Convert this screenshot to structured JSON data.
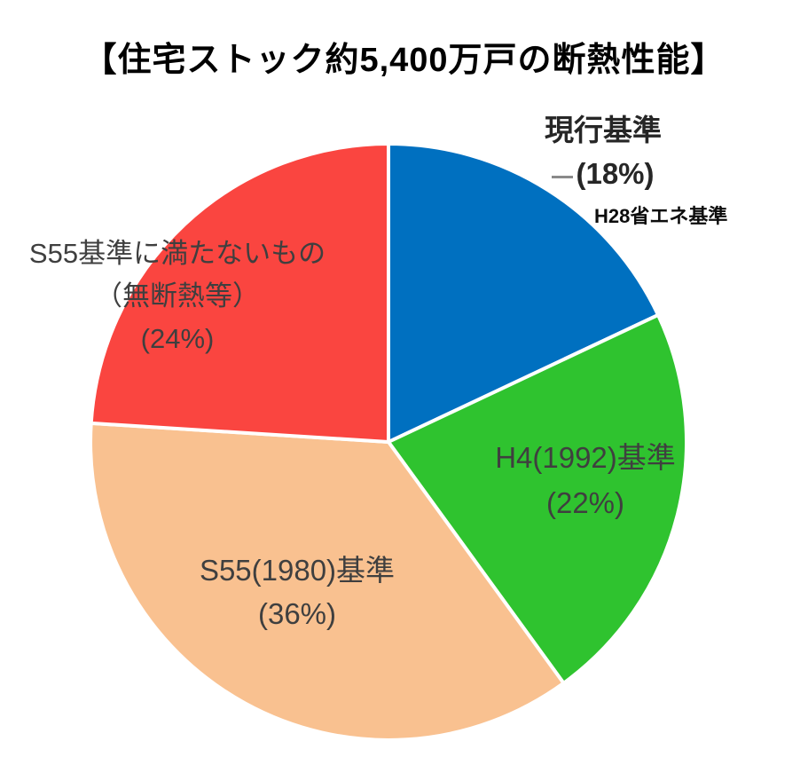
{
  "page": {
    "background": "#ffffff",
    "text_color": "#3f3f3f",
    "title_color": "#000000"
  },
  "title": "【住宅ストック約5,400万戸の断熱性能】",
  "chart_data": {
    "type": "pie",
    "title": "【住宅ストック約5,400万戸の断熱性能】",
    "start_angle_deg": 0,
    "direction": "clockwise",
    "total_percent": 100,
    "slices": [
      {
        "label": "現行基準",
        "annotation": "H28省エネ基準",
        "percent": 18,
        "color": "#0070C0"
      },
      {
        "label": "H4(1992)基準",
        "percent": 22,
        "color": "#2FC32F"
      },
      {
        "label": "S55(1980)基準",
        "percent": 36,
        "color": "#F9C190"
      },
      {
        "label": "S55基準に満たないもの（無断熱等）",
        "percent": 24,
        "color": "#FA4540"
      }
    ],
    "gap_stroke": {
      "color": "#ffffff",
      "width": 4
    },
    "legend": "none",
    "labels_on_chart": true
  },
  "labels": {
    "blue_line1": "現行基準",
    "blue_line2": "(18%)",
    "blue_annotation": "H28省エネ基準",
    "green_line1": "H4(1992)基準",
    "green_line2": "(22%)",
    "tan_line1": "S55(1980)基準",
    "tan_line2": "(36%)",
    "red_line1": "S55基準に満たないもの",
    "red_line2": "（無断熱等）",
    "red_line3": "(24%)"
  }
}
